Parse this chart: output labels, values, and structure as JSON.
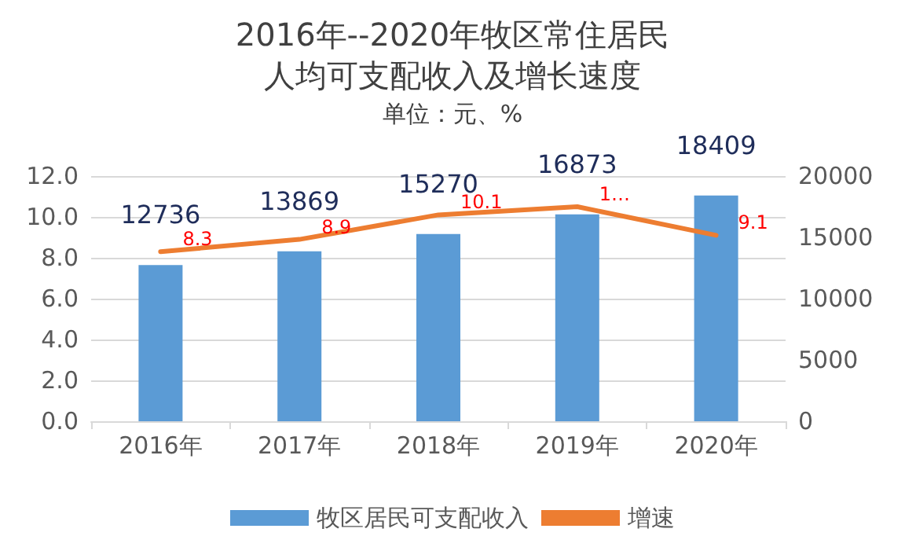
{
  "chart_data": {
    "type": "bar",
    "title": "2016年--2020年牧区常住居民人均可支配收入及增长速度",
    "subtitle": "单位：元、%",
    "categories": [
      "2016年",
      "2017年",
      "2018年",
      "2019年",
      "2020年"
    ],
    "series": [
      {
        "name": "牧区居民可支配收入",
        "axis": "y2",
        "color": "#5b9bd5",
        "values": [
          12736,
          13869,
          15270,
          16873,
          18409
        ],
        "value_labels": [
          "12736",
          "13869",
          "15270",
          "16873",
          "18409"
        ]
      },
      {
        "name": "增速",
        "type": "line",
        "axis": "y",
        "color": "#ed7d31",
        "values": [
          8.3,
          8.9,
          10.1,
          10.5,
          9.1
        ],
        "value_labels": [
          "8.3",
          "8.9",
          "10.1",
          "1…",
          "9.1"
        ]
      }
    ],
    "ylim": [
      0,
      12
    ],
    "yticks": [
      {
        "value": 0,
        "label": "0.0"
      },
      {
        "value": 2,
        "label": "2.0"
      },
      {
        "value": 4,
        "label": "4.0"
      },
      {
        "value": 6,
        "label": "6.0"
      },
      {
        "value": 8,
        "label": "8.0"
      },
      {
        "value": 10,
        "label": "10.0"
      },
      {
        "value": 12,
        "label": "12.0"
      }
    ],
    "y2lim": [
      0,
      20000
    ],
    "y2ticks": [
      0,
      5000,
      10000,
      15000,
      20000
    ],
    "grid": "y",
    "legend": "bottom",
    "marker": "none"
  }
}
